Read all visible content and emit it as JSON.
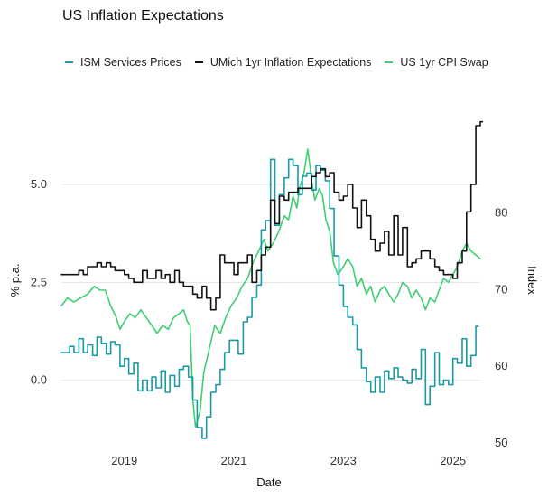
{
  "title": "US Inflation Expectations",
  "legend": [
    {
      "label": "ISM Services Prices",
      "color": "#1a9aa7"
    },
    {
      "label": "UMich 1yr Inflation Expectations",
      "color": "#111111"
    },
    {
      "label": "US 1yr CPI Swap",
      "color": "#3ecf72"
    }
  ],
  "chart_data": {
    "type": "line",
    "title": "US Inflation Expectations",
    "xlabel": "Date",
    "ylabel_left": "% p.a.",
    "ylabel_right": "Index",
    "x_range": [
      2017.85,
      2025.5
    ],
    "y_left_range": [
      -1.6,
      7.4
    ],
    "y_right_range": [
      50,
      96
    ],
    "x_ticks": [
      {
        "value": 2019,
        "label": "2019"
      },
      {
        "value": 2021,
        "label": "2021"
      },
      {
        "value": 2023,
        "label": "2023"
      },
      {
        "value": 2025,
        "label": "2025"
      }
    ],
    "y_left_ticks": [
      {
        "value": 0.0,
        "label": "0.0"
      },
      {
        "value": 2.5,
        "label": "2.5"
      },
      {
        "value": 5.0,
        "label": "5.0"
      }
    ],
    "y_right_ticks": [
      {
        "value": 50,
        "label": "50"
      },
      {
        "value": 60,
        "label": "60"
      },
      {
        "value": 70,
        "label": "70"
      },
      {
        "value": 80,
        "label": "80"
      }
    ],
    "grid": "horizontal",
    "legend_position": "top-left",
    "series": [
      {
        "name": "ISM Services Prices",
        "axis": "right",
        "color": "#1a9aa7",
        "step": true,
        "points": [
          [
            2017.85,
            61.8
          ],
          [
            2018.0,
            62.6
          ],
          [
            2018.08,
            61.8
          ],
          [
            2018.17,
            63.6
          ],
          [
            2018.25,
            61.8
          ],
          [
            2018.33,
            62.8
          ],
          [
            2018.42,
            61.4
          ],
          [
            2018.5,
            63.8
          ],
          [
            2018.58,
            63.0
          ],
          [
            2018.67,
            61.6
          ],
          [
            2018.75,
            63.2
          ],
          [
            2018.83,
            62.8
          ],
          [
            2018.92,
            60.0
          ],
          [
            2019.0,
            61.0
          ],
          [
            2019.08,
            59.0
          ],
          [
            2019.17,
            60.4
          ],
          [
            2019.25,
            56.8
          ],
          [
            2019.33,
            58.2
          ],
          [
            2019.42,
            56.8
          ],
          [
            2019.5,
            58.6
          ],
          [
            2019.58,
            57.2
          ],
          [
            2019.67,
            59.4
          ],
          [
            2019.75,
            56.6
          ],
          [
            2019.83,
            58.8
          ],
          [
            2019.92,
            57.4
          ],
          [
            2020.0,
            59.6
          ],
          [
            2020.08,
            60.0
          ],
          [
            2020.17,
            58.6
          ],
          [
            2020.25,
            55.6
          ],
          [
            2020.33,
            52.0
          ],
          [
            2020.42,
            50.6
          ],
          [
            2020.5,
            53.4
          ],
          [
            2020.58,
            56.6
          ],
          [
            2020.67,
            57.6
          ],
          [
            2020.75,
            59.6
          ],
          [
            2020.83,
            61.8
          ],
          [
            2020.92,
            63.4
          ],
          [
            2021.0,
            63.4
          ],
          [
            2021.08,
            61.6
          ],
          [
            2021.17,
            65.8
          ],
          [
            2021.25,
            66.4
          ],
          [
            2021.33,
            69.0
          ],
          [
            2021.42,
            70.6
          ],
          [
            2021.5,
            77.8
          ],
          [
            2021.58,
            79.0
          ],
          [
            2021.67,
            87.0
          ],
          [
            2021.75,
            78.4
          ],
          [
            2021.83,
            82.4
          ],
          [
            2021.92,
            84.6
          ],
          [
            2022.0,
            87.0
          ],
          [
            2022.08,
            86.2
          ],
          [
            2022.17,
            82.4
          ],
          [
            2022.25,
            84.8
          ],
          [
            2022.33,
            85.2
          ],
          [
            2022.42,
            83.0
          ],
          [
            2022.5,
            86.2
          ],
          [
            2022.58,
            85.6
          ],
          [
            2022.67,
            84.2
          ],
          [
            2022.75,
            80.6
          ],
          [
            2022.83,
            74.4
          ],
          [
            2022.92,
            70.6
          ],
          [
            2023.0,
            67.8
          ],
          [
            2023.08,
            66.4
          ],
          [
            2023.17,
            65.4
          ],
          [
            2023.25,
            62.2
          ],
          [
            2023.33,
            59.8
          ],
          [
            2023.42,
            58.0
          ],
          [
            2023.5,
            56.6
          ],
          [
            2023.58,
            58.6
          ],
          [
            2023.67,
            56.6
          ],
          [
            2023.75,
            59.4
          ],
          [
            2023.83,
            58.4
          ],
          [
            2023.92,
            59.8
          ],
          [
            2024.0,
            58.6
          ],
          [
            2024.08,
            58.2
          ],
          [
            2024.17,
            57.8
          ],
          [
            2024.25,
            59.6
          ],
          [
            2024.33,
            58.4
          ],
          [
            2024.42,
            62.2
          ],
          [
            2024.5,
            55.0
          ],
          [
            2024.58,
            57.4
          ],
          [
            2024.67,
            61.8
          ],
          [
            2024.75,
            57.6
          ],
          [
            2024.83,
            58.2
          ],
          [
            2024.92,
            57.6
          ],
          [
            2025.0,
            61.0
          ],
          [
            2025.08,
            60.4
          ],
          [
            2025.17,
            63.6
          ],
          [
            2025.25,
            60.0
          ],
          [
            2025.33,
            61.4
          ],
          [
            2025.42,
            65.2
          ]
        ]
      },
      {
        "name": "UMich 1yr Inflation Expectations",
        "axis": "left",
        "color": "#111111",
        "step": true,
        "points": [
          [
            2017.85,
            2.7
          ],
          [
            2018.0,
            2.7
          ],
          [
            2018.08,
            2.7
          ],
          [
            2018.17,
            2.8
          ],
          [
            2018.25,
            2.7
          ],
          [
            2018.33,
            2.9
          ],
          [
            2018.42,
            2.9
          ],
          [
            2018.5,
            3.0
          ],
          [
            2018.58,
            2.9
          ],
          [
            2018.67,
            3.0
          ],
          [
            2018.75,
            2.9
          ],
          [
            2018.83,
            2.8
          ],
          [
            2018.92,
            2.8
          ],
          [
            2019.0,
            2.7
          ],
          [
            2019.08,
            2.6
          ],
          [
            2019.17,
            2.5
          ],
          [
            2019.25,
            2.5
          ],
          [
            2019.33,
            2.8
          ],
          [
            2019.42,
            2.6
          ],
          [
            2019.5,
            2.6
          ],
          [
            2019.58,
            2.8
          ],
          [
            2019.67,
            2.6
          ],
          [
            2019.75,
            2.7
          ],
          [
            2019.83,
            2.5
          ],
          [
            2019.92,
            2.8
          ],
          [
            2020.0,
            2.5
          ],
          [
            2020.08,
            2.4
          ],
          [
            2020.17,
            2.4
          ],
          [
            2020.25,
            2.2
          ],
          [
            2020.33,
            2.1
          ],
          [
            2020.42,
            2.4
          ],
          [
            2020.5,
            2.1
          ],
          [
            2020.58,
            1.8
          ],
          [
            2020.67,
            2.1
          ],
          [
            2020.75,
            3.2
          ],
          [
            2020.83,
            3.0
          ],
          [
            2020.92,
            3.0
          ],
          [
            2021.0,
            2.7
          ],
          [
            2021.08,
            3.0
          ],
          [
            2021.17,
            3.0
          ],
          [
            2021.25,
            3.2
          ],
          [
            2021.33,
            2.5
          ],
          [
            2021.42,
            2.8
          ],
          [
            2021.5,
            3.2
          ],
          [
            2021.58,
            3.4
          ],
          [
            2021.67,
            4.6
          ],
          [
            2021.75,
            4.0
          ],
          [
            2021.83,
            4.7
          ],
          [
            2021.92,
            4.6
          ],
          [
            2022.0,
            4.8
          ],
          [
            2022.08,
            4.8
          ],
          [
            2022.17,
            4.9
          ],
          [
            2022.25,
            4.9
          ],
          [
            2022.33,
            4.9
          ],
          [
            2022.42,
            5.2
          ],
          [
            2022.5,
            5.3
          ],
          [
            2022.58,
            5.4
          ],
          [
            2022.67,
            5.2
          ],
          [
            2022.75,
            5.3
          ],
          [
            2022.83,
            4.8
          ],
          [
            2022.92,
            4.6
          ],
          [
            2023.0,
            4.7
          ],
          [
            2023.08,
            5.0
          ],
          [
            2023.17,
            4.4
          ],
          [
            2023.25,
            3.9
          ],
          [
            2023.33,
            4.6
          ],
          [
            2023.42,
            4.2
          ],
          [
            2023.5,
            3.6
          ],
          [
            2023.58,
            3.3
          ],
          [
            2023.67,
            3.5
          ],
          [
            2023.75,
            3.8
          ],
          [
            2023.83,
            3.2
          ],
          [
            2023.92,
            4.2
          ],
          [
            2024.0,
            3.2
          ],
          [
            2024.08,
            3.9
          ],
          [
            2024.17,
            2.9
          ],
          [
            2024.25,
            3.0
          ],
          [
            2024.33,
            3.1
          ],
          [
            2024.42,
            3.3
          ],
          [
            2024.5,
            3.3
          ],
          [
            2024.58,
            3.1
          ],
          [
            2024.67,
            2.9
          ],
          [
            2024.75,
            2.8
          ],
          [
            2024.83,
            2.7
          ],
          [
            2024.92,
            2.7
          ],
          [
            2025.0,
            2.6
          ],
          [
            2025.08,
            3.0
          ],
          [
            2025.17,
            3.3
          ],
          [
            2025.25,
            4.3
          ],
          [
            2025.33,
            5.0
          ],
          [
            2025.42,
            6.5
          ],
          [
            2025.5,
            6.6
          ]
        ]
      },
      {
        "name": "US 1yr CPI Swap",
        "axis": "left",
        "color": "#3ecf72",
        "step": false,
        "points": [
          [
            2017.85,
            1.9
          ],
          [
            2017.96,
            2.1
          ],
          [
            2018.08,
            2.0
          ],
          [
            2018.2,
            2.1
          ],
          [
            2018.33,
            2.2
          ],
          [
            2018.45,
            2.4
          ],
          [
            2018.55,
            2.3
          ],
          [
            2018.65,
            2.3
          ],
          [
            2018.75,
            1.9
          ],
          [
            2018.85,
            1.6
          ],
          [
            2018.92,
            1.3
          ],
          [
            2019.0,
            1.5
          ],
          [
            2019.1,
            1.7
          ],
          [
            2019.2,
            1.6
          ],
          [
            2019.3,
            1.8
          ],
          [
            2019.4,
            1.6
          ],
          [
            2019.5,
            1.4
          ],
          [
            2019.6,
            1.2
          ],
          [
            2019.7,
            1.4
          ],
          [
            2019.8,
            1.3
          ],
          [
            2019.9,
            1.6
          ],
          [
            2020.0,
            1.7
          ],
          [
            2020.08,
            1.8
          ],
          [
            2020.15,
            1.5
          ],
          [
            2020.2,
            1.4
          ],
          [
            2020.25,
            -0.5
          ],
          [
            2020.3,
            -1.2
          ],
          [
            2020.38,
            -0.8
          ],
          [
            2020.45,
            0.2
          ],
          [
            2020.55,
            0.8
          ],
          [
            2020.65,
            1.4
          ],
          [
            2020.75,
            1.2
          ],
          [
            2020.85,
            1.6
          ],
          [
            2020.95,
            1.9
          ],
          [
            2021.05,
            2.1
          ],
          [
            2021.15,
            2.4
          ],
          [
            2021.25,
            2.6
          ],
          [
            2021.35,
            3.0
          ],
          [
            2021.45,
            3.3
          ],
          [
            2021.55,
            3.6
          ],
          [
            2021.62,
            3.3
          ],
          [
            2021.72,
            3.5
          ],
          [
            2021.82,
            3.8
          ],
          [
            2021.92,
            4.2
          ],
          [
            2022.0,
            4.1
          ],
          [
            2022.08,
            4.7
          ],
          [
            2022.15,
            4.4
          ],
          [
            2022.2,
            4.9
          ],
          [
            2022.28,
            5.3
          ],
          [
            2022.35,
            5.9
          ],
          [
            2022.42,
            5.1
          ],
          [
            2022.48,
            4.6
          ],
          [
            2022.56,
            4.9
          ],
          [
            2022.62,
            4.7
          ],
          [
            2022.68,
            4.1
          ],
          [
            2022.75,
            3.8
          ],
          [
            2022.82,
            3.0
          ],
          [
            2022.9,
            2.7
          ],
          [
            2023.0,
            2.9
          ],
          [
            2023.08,
            3.1
          ],
          [
            2023.17,
            2.9
          ],
          [
            2023.25,
            2.4
          ],
          [
            2023.33,
            2.6
          ],
          [
            2023.42,
            2.2
          ],
          [
            2023.5,
            2.4
          ],
          [
            2023.58,
            2.0
          ],
          [
            2023.67,
            2.3
          ],
          [
            2023.75,
            2.4
          ],
          [
            2023.83,
            2.2
          ],
          [
            2023.92,
            2.0
          ],
          [
            2024.0,
            2.2
          ],
          [
            2024.08,
            2.5
          ],
          [
            2024.17,
            2.4
          ],
          [
            2024.25,
            2.1
          ],
          [
            2024.33,
            2.3
          ],
          [
            2024.42,
            2.1
          ],
          [
            2024.5,
            1.8
          ],
          [
            2024.58,
            2.1
          ],
          [
            2024.67,
            2.0
          ],
          [
            2024.75,
            2.3
          ],
          [
            2024.83,
            2.6
          ],
          [
            2024.92,
            2.5
          ],
          [
            2025.0,
            2.7
          ],
          [
            2025.08,
            2.9
          ],
          [
            2025.17,
            3.3
          ],
          [
            2025.25,
            3.5
          ],
          [
            2025.33,
            3.3
          ],
          [
            2025.42,
            3.2
          ],
          [
            2025.5,
            3.1
          ]
        ]
      }
    ]
  }
}
